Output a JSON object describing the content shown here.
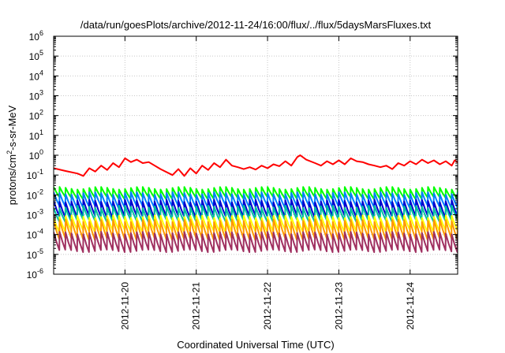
{
  "chart_data": {
    "type": "line",
    "title": "/data/run/goesPlots/archive/2012-11-24/16:00/flux/../flux/5daysMarsFluxes.txt",
    "xlabel": "Coordinated Universal Time (UTC)",
    "ylabel": {
      "base": "protons/cm",
      "exp": "2",
      "rest": "-s-sr-MeV"
    },
    "y_scale": "log",
    "ylim_log10": [
      -6,
      6
    ],
    "y_ticks": [
      {
        "exp": -6,
        "mant": "10",
        "sup": "-6"
      },
      {
        "exp": -5,
        "mant": "10",
        "sup": "-5"
      },
      {
        "exp": -4,
        "mant": "10",
        "sup": "-4"
      },
      {
        "exp": -3,
        "mant": "10",
        "sup": "-3"
      },
      {
        "exp": -2,
        "mant": "10",
        "sup": "-2"
      },
      {
        "exp": -1,
        "mant": "10",
        "sup": "-1"
      },
      {
        "exp": 0,
        "mant": "10",
        "sup": "0"
      },
      {
        "exp": 1,
        "mant": "10",
        "sup": "1"
      },
      {
        "exp": 2,
        "mant": "10",
        "sup": "2"
      },
      {
        "exp": 3,
        "mant": "10",
        "sup": "3"
      },
      {
        "exp": 4,
        "mant": "10",
        "sup": "4"
      },
      {
        "exp": 5,
        "mant": "10",
        "sup": "5"
      },
      {
        "exp": 6,
        "mant": "10",
        "sup": "6"
      }
    ],
    "xlim_days": [
      "2012-11-19T00:00",
      "2012-11-24T16:00"
    ],
    "x_ticks": [
      {
        "label": "2012-11-20",
        "date": "2012-11-20T00:00"
      },
      {
        "label": "2012-11-21",
        "date": "2012-11-21T00:00"
      },
      {
        "label": "2012-11-22",
        "date": "2012-11-22T00:00"
      },
      {
        "label": "2012-11-23",
        "date": "2012-11-23T00:00"
      },
      {
        "label": "2012-11-24",
        "date": "2012-11-24T00:00"
      }
    ],
    "grid": true,
    "series": [
      {
        "color": "#ff0000",
        "points": [
          [
            "2012-11-19T00:00",
            0.22
          ],
          [
            "2012-11-19T04:00",
            0.16
          ],
          [
            "2012-11-19T08:00",
            0.12
          ],
          [
            "2012-11-19T10:00",
            0.09
          ],
          [
            "2012-11-19T12:00",
            0.22
          ],
          [
            "2012-11-19T14:00",
            0.15
          ],
          [
            "2012-11-19T16:00",
            0.3
          ],
          [
            "2012-11-19T18:00",
            0.18
          ],
          [
            "2012-11-19T20:00",
            0.4
          ],
          [
            "2012-11-19T22:00",
            0.25
          ],
          [
            "2012-11-20T00:00",
            0.7
          ],
          [
            "2012-11-20T02:00",
            0.45
          ],
          [
            "2012-11-20T04:00",
            0.6
          ],
          [
            "2012-11-20T06:00",
            0.4
          ],
          [
            "2012-11-20T08:00",
            0.45
          ],
          [
            "2012-11-20T12:00",
            0.2
          ],
          [
            "2012-11-20T16:00",
            0.1
          ],
          [
            "2012-11-20T18:00",
            0.2
          ],
          [
            "2012-11-20T20:00",
            0.09
          ],
          [
            "2012-11-20T22:00",
            0.22
          ],
          [
            "2012-11-21T00:00",
            0.12
          ],
          [
            "2012-11-21T02:00",
            0.3
          ],
          [
            "2012-11-21T04:00",
            0.18
          ],
          [
            "2012-11-21T06:00",
            0.4
          ],
          [
            "2012-11-21T08:00",
            0.25
          ],
          [
            "2012-11-21T10:00",
            0.6
          ],
          [
            "2012-11-21T12:00",
            0.3
          ],
          [
            "2012-11-21T14:00",
            0.25
          ],
          [
            "2012-11-21T16:00",
            0.2
          ],
          [
            "2012-11-21T18:00",
            0.25
          ],
          [
            "2012-11-21T20:00",
            0.19
          ],
          [
            "2012-11-21T22:00",
            0.3
          ],
          [
            "2012-11-22T00:00",
            0.22
          ],
          [
            "2012-11-22T02:00",
            0.35
          ],
          [
            "2012-11-22T04:00",
            0.28
          ],
          [
            "2012-11-22T06:00",
            0.5
          ],
          [
            "2012-11-22T08:00",
            0.3
          ],
          [
            "2012-11-22T10:00",
            0.8
          ],
          [
            "2012-11-22T11:00",
            1.0
          ],
          [
            "2012-11-22T13:00",
            0.6
          ],
          [
            "2012-11-22T16:00",
            0.4
          ],
          [
            "2012-11-22T18:00",
            0.3
          ],
          [
            "2012-11-22T20:00",
            0.5
          ],
          [
            "2012-11-22T22:00",
            0.35
          ],
          [
            "2012-11-23T00:00",
            0.55
          ],
          [
            "2012-11-23T02:00",
            0.35
          ],
          [
            "2012-11-23T04:00",
            0.7
          ],
          [
            "2012-11-23T06:00",
            0.5
          ],
          [
            "2012-11-23T08:00",
            0.45
          ],
          [
            "2012-11-23T10:00",
            0.35
          ],
          [
            "2012-11-23T12:00",
            0.3
          ],
          [
            "2012-11-23T14:00",
            0.25
          ],
          [
            "2012-11-23T16:00",
            0.3
          ],
          [
            "2012-11-23T18:00",
            0.2
          ],
          [
            "2012-11-23T20:00",
            0.4
          ],
          [
            "2012-11-23T22:00",
            0.3
          ],
          [
            "2012-11-24T00:00",
            0.5
          ],
          [
            "2012-11-24T02:00",
            0.35
          ],
          [
            "2012-11-24T04:00",
            0.6
          ],
          [
            "2012-11-24T06:00",
            0.4
          ],
          [
            "2012-11-24T08:00",
            0.55
          ],
          [
            "2012-11-24T10:00",
            0.35
          ],
          [
            "2012-11-24T12:00",
            0.5
          ],
          [
            "2012-11-24T14:00",
            0.3
          ],
          [
            "2012-11-24T15:00",
            0.55
          ],
          [
            "2012-11-24T16:00",
            0.45
          ]
        ]
      },
      {
        "color": "#00ff00",
        "peak": 0.022,
        "trough": 0.007
      },
      {
        "color": "#0080ff",
        "peak": 0.012,
        "trough": 0.0025
      },
      {
        "color": "#0000d0",
        "peak": 0.005,
        "trough": 0.0008
      },
      {
        "color": "#00c0a0",
        "peak": 0.0025,
        "trough": 0.0005
      },
      {
        "color": "#ffff00",
        "peak": 0.0008,
        "trough": 0.00015
      },
      {
        "color": "#ff9900",
        "peak": 0.0005,
        "trough": 6e-05
      },
      {
        "color": "#a03060",
        "peak": 0.00012,
        "trough": 1.5e-05
      }
    ]
  }
}
